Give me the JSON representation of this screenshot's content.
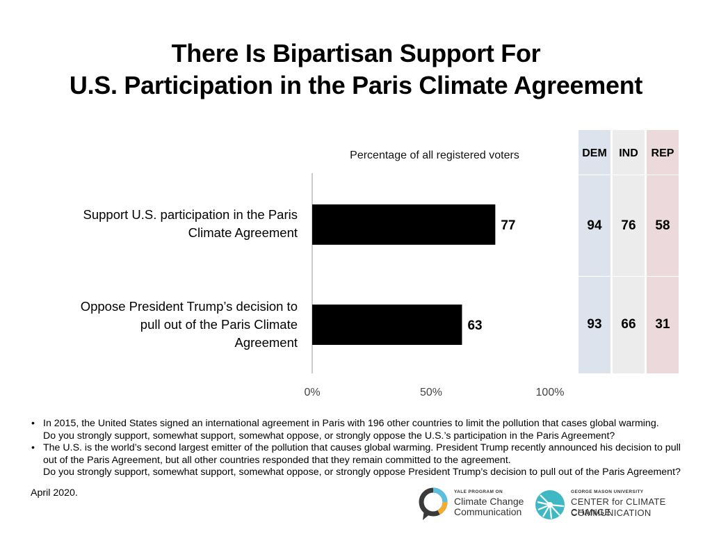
{
  "title": {
    "line1": "There Is Bipartisan Support For",
    "line2": "U.S. Participation in the Paris Climate Agreement"
  },
  "chart_data": {
    "type": "bar",
    "orientation": "horizontal",
    "subtitle": "Percentage of all registered voters",
    "categories": [
      "Support U.S. participation in the Paris\nClimate Agreement",
      "Oppose President Trump’s decision to\npull out of the Paris Climate\nAgreement"
    ],
    "values": [
      77,
      63
    ],
    "value_labels": [
      "77",
      "63"
    ],
    "xlim": [
      0,
      100
    ],
    "xticks": [
      "0%",
      "50%",
      "100%"
    ],
    "bar_color": "#000000",
    "grid": false
  },
  "party_table": {
    "headers": [
      {
        "label": "DEM",
        "color": "#dde3ec"
      },
      {
        "label": "IND",
        "color": "#ececec"
      },
      {
        "label": "REP",
        "color": "#ecd9db"
      }
    ],
    "rows": [
      [
        "94",
        "76",
        "58"
      ],
      [
        "93",
        "66",
        "31"
      ]
    ]
  },
  "notes": [
    {
      "lines": [
        "In 2015, the United States signed an international agreement in Paris with 196 other countries to limit the pollution that cases global warming.",
        "Do you strongly support, somewhat support, somewhat oppose, or strongly oppose the U.S.’s participation in the Paris Agreement?"
      ]
    },
    {
      "lines": [
        "The U.S. is the world’s second largest emitter of the pollution that causes global warming. President Trump recently announced his decision to pull",
        "out of the Paris Agreement, but all other countries responded that they remain committed to the agreement.",
        "Do you strongly support, somewhat support, somewhat oppose, or strongly oppose President Trump’s decision to pull out of the Paris Agreement?"
      ]
    }
  ],
  "date": "April 2020.",
  "logos": {
    "yale": {
      "small": "YALE PROGRAM ON",
      "line1": "Climate Change",
      "line2": "Communication"
    },
    "gmu": {
      "small": "GEORGE MASON UNIVERSITY",
      "line1": "CENTER for CLIMATE CHANGE",
      "line2": "COMMUNICATION"
    }
  }
}
